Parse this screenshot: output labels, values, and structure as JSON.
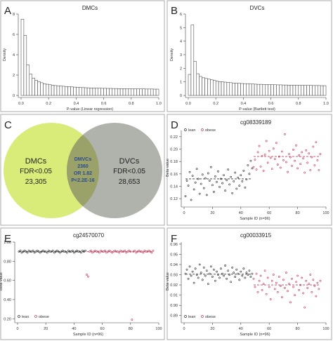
{
  "colors": {
    "lean": "#333333",
    "obese": "#c0405c",
    "dmc_circle": "#d9ec7a",
    "dvc_circle": "#b0b3ab",
    "overlap": "#9aa26a",
    "overlap_text": "#2c4d8c",
    "frame": "#aaaaaa",
    "bar_fill": "#ffffff",
    "bar_stroke": "#333333"
  },
  "panels": {
    "A": {
      "letter": "A"
    },
    "B": {
      "letter": "B"
    },
    "C": {
      "letter": "C",
      "left": {
        "title": "DMCs",
        "fdr": "FDR<0.05",
        "count": "23,305"
      },
      "right": {
        "title": "DVCs",
        "fdr": "FDR<0.05",
        "count": "28,653"
      },
      "overlap": {
        "title": "DMVCs",
        "count": "2360",
        "or": "OR 1.82",
        "p": "P<2.2E-16"
      }
    },
    "D": {
      "letter": "D"
    },
    "E": {
      "letter": "E"
    },
    "F": {
      "letter": "F"
    }
  },
  "chart_data": [
    {
      "id": "A",
      "type": "bar",
      "title": "DMCs",
      "xlabel": "P-value (Linear regression)",
      "ylabel": "Density",
      "xlim": [
        0,
        1
      ],
      "ylim": [
        0,
        8
      ],
      "xticks": [
        "0.0",
        "0.2",
        "0.4",
        "0.6",
        "0.8",
        "1.0"
      ],
      "yticks": [
        "0",
        "2",
        "4",
        "6",
        "8"
      ],
      "bin_width": 0.02,
      "values": [
        7.5,
        5.9,
        3.0,
        2.1,
        1.7,
        1.5,
        1.35,
        1.25,
        1.15,
        1.1,
        1.05,
        1.0,
        0.97,
        0.95,
        0.92,
        0.9,
        0.88,
        0.86,
        0.84,
        0.82,
        0.8,
        0.78,
        0.77,
        0.76,
        0.75,
        0.74,
        0.73,
        0.72,
        0.71,
        0.7,
        0.7,
        0.69,
        0.69,
        0.68,
        0.68,
        0.67,
        0.67,
        0.66,
        0.66,
        0.65,
        0.65,
        0.65,
        0.64,
        0.64,
        0.64,
        0.63,
        0.63,
        0.63,
        0.62,
        0.62
      ]
    },
    {
      "id": "B",
      "type": "bar",
      "title": "DVCs",
      "xlabel": "P-value (Bartlett test)",
      "ylabel": "Density",
      "xlim": [
        0,
        1
      ],
      "ylim": [
        0,
        6
      ],
      "xticks": [
        "0.0",
        "0.2",
        "0.4",
        "0.6",
        "0.8",
        "1.0"
      ],
      "yticks": [
        "0",
        "1",
        "2",
        "3",
        "4",
        "5",
        "6"
      ],
      "bin_width": 0.02,
      "values": [
        1.55,
        5.2,
        2.5,
        1.6,
        1.4,
        1.3,
        1.25,
        1.2,
        1.15,
        1.1,
        1.05,
        1.02,
        1.0,
        0.98,
        0.96,
        0.94,
        0.92,
        0.9,
        0.89,
        0.88,
        0.87,
        0.86,
        0.85,
        0.84,
        0.83,
        0.82,
        0.82,
        0.81,
        0.8,
        0.8,
        0.79,
        0.79,
        0.78,
        0.78,
        0.77,
        0.77,
        0.76,
        0.76,
        0.76,
        0.75,
        0.75,
        0.75,
        0.74,
        0.74,
        0.74,
        0.73,
        0.73,
        0.73,
        0.72,
        0.72
      ]
    },
    {
      "id": "D",
      "type": "scatter",
      "title": "cg08339189",
      "xlabel": "Sample ID (n=96)",
      "ylabel": "Beta value",
      "xlim": [
        0,
        100
      ],
      "ylim": [
        0.11,
        0.23
      ],
      "xticks": [
        "0",
        "20",
        "40",
        "60",
        "80",
        "100"
      ],
      "yticks": [
        "0.12",
        "0.14",
        "0.16",
        "0.18",
        "0.20",
        "0.22"
      ],
      "legend": [
        "lean",
        "obese"
      ],
      "legend_position": "top-left",
      "means": [
        0.152,
        0.188
      ],
      "series": [
        {
          "name": "lean",
          "x": [
            1,
            2,
            3,
            4,
            5,
            6,
            7,
            8,
            9,
            10,
            11,
            12,
            13,
            14,
            15,
            16,
            17,
            18,
            19,
            20,
            21,
            22,
            23,
            24,
            25,
            26,
            27,
            28,
            29,
            30,
            31,
            32,
            33,
            34,
            35,
            36,
            37,
            38,
            39,
            40,
            41,
            42,
            43,
            44,
            45,
            46,
            47,
            48
          ],
          "y": [
            0.124,
            0.149,
            0.141,
            0.163,
            0.118,
            0.157,
            0.135,
            0.146,
            0.168,
            0.152,
            0.128,
            0.144,
            0.159,
            0.137,
            0.153,
            0.126,
            0.161,
            0.149,
            0.171,
            0.142,
            0.131,
            0.156,
            0.147,
            0.164,
            0.139,
            0.152,
            0.145,
            0.158,
            0.133,
            0.15,
            0.167,
            0.143,
            0.155,
            0.129,
            0.148,
            0.162,
            0.136,
            0.154,
            0.141,
            0.158,
            0.148,
            0.165,
            0.138,
            0.151,
            0.174,
            0.16,
            0.181,
            0.169
          ]
        },
        {
          "name": "obese",
          "x": [
            49,
            50,
            51,
            52,
            53,
            54,
            55,
            56,
            57,
            58,
            59,
            60,
            61,
            62,
            63,
            64,
            65,
            66,
            67,
            68,
            69,
            70,
            71,
            72,
            73,
            74,
            75,
            76,
            77,
            78,
            79,
            80,
            81,
            82,
            83,
            84,
            85,
            86,
            87,
            88,
            89,
            90,
            91,
            92,
            93,
            94,
            95,
            96
          ],
          "y": [
            0.171,
            0.183,
            0.167,
            0.195,
            0.205,
            0.172,
            0.189,
            0.165,
            0.191,
            0.213,
            0.178,
            0.197,
            0.186,
            0.168,
            0.201,
            0.184,
            0.21,
            0.175,
            0.188,
            0.17,
            0.196,
            0.182,
            0.224,
            0.179,
            0.163,
            0.192,
            0.187,
            0.173,
            0.199,
            0.181,
            0.206,
            0.169,
            0.19,
            0.176,
            0.195,
            0.185,
            0.162,
            0.198,
            0.178,
            0.193,
            0.166,
            0.187,
            0.204,
            0.174,
            0.211,
            0.182,
            0.166,
            0.192
          ]
        }
      ]
    },
    {
      "id": "E",
      "type": "scatter",
      "title": "cg24570070",
      "xlabel": "Sample ID (n=96)",
      "ylabel": "Beta value",
      "xlim": [
        0,
        100
      ],
      "ylim": [
        0.18,
        1.0
      ],
      "xticks": [
        "0",
        "20",
        "40",
        "60",
        "80",
        "100"
      ],
      "yticks": [
        "0.20",
        "0.40",
        "0.60",
        "0.80",
        "1.00"
      ],
      "legend": [
        "lean",
        "obese"
      ],
      "legend_position": "bottom-left",
      "means": [
        0.9,
        0.9
      ],
      "series": [
        {
          "name": "lean",
          "x": [
            1,
            2,
            3,
            4,
            5,
            6,
            7,
            8,
            9,
            10,
            11,
            12,
            13,
            14,
            15,
            16,
            17,
            18,
            19,
            20,
            21,
            22,
            23,
            24,
            25,
            26,
            27,
            28,
            29,
            30,
            31,
            32,
            33,
            34,
            35,
            36,
            37,
            38,
            39,
            40,
            41,
            42,
            43,
            44,
            45,
            46,
            47,
            48
          ],
          "y": [
            0.9,
            0.91,
            0.89,
            0.9,
            0.91,
            0.9,
            0.89,
            0.91,
            0.9,
            0.9,
            0.91,
            0.89,
            0.9,
            0.91,
            0.9,
            0.89,
            0.9,
            0.91,
            0.9,
            0.9,
            0.89,
            0.91,
            0.9,
            0.9,
            0.91,
            0.89,
            0.9,
            0.91,
            0.9,
            0.89,
            0.9,
            0.91,
            0.9,
            0.9,
            0.89,
            0.91,
            0.9,
            0.9,
            0.91,
            0.89,
            0.9,
            0.91,
            0.9,
            0.9,
            0.89,
            0.91,
            0.9,
            0.91
          ]
        },
        {
          "name": "obese",
          "x": [
            49,
            50,
            51,
            52,
            53,
            54,
            55,
            56,
            57,
            58,
            59,
            60,
            61,
            62,
            63,
            64,
            65,
            66,
            67,
            68,
            69,
            70,
            71,
            72,
            73,
            74,
            75,
            76,
            77,
            78,
            79,
            80,
            81,
            82,
            83,
            84,
            85,
            86,
            87,
            88,
            89,
            90,
            91,
            92,
            93,
            94,
            95,
            96
          ],
          "y": [
            0.66,
            0.64,
            0.9,
            0.91,
            0.89,
            0.9,
            0.91,
            0.9,
            0.9,
            0.89,
            0.91,
            0.9,
            0.9,
            0.91,
            0.89,
            0.9,
            0.91,
            0.9,
            0.89,
            0.9,
            0.91,
            0.9,
            0.9,
            0.89,
            0.91,
            0.9,
            0.9,
            0.91,
            0.89,
            0.9,
            0.91,
            0.9,
            0.19,
            0.9,
            0.91,
            0.89,
            0.9,
            0.91,
            0.9,
            0.9,
            0.89,
            0.91,
            0.9,
            0.9,
            0.91,
            0.9,
            0.89,
            0.91
          ]
        }
      ]
    },
    {
      "id": "F",
      "type": "scatter",
      "title": "cg00033915",
      "xlabel": "Sample ID (n=96)",
      "ylabel": "Beta value",
      "xlim": [
        0,
        100
      ],
      "ylim": [
        0.885,
        0.962
      ],
      "xticks": [
        "0",
        "20",
        "40",
        "60",
        "80",
        "100"
      ],
      "yticks": [
        "0.89",
        "0.90",
        "0.91",
        "0.92",
        "0.93",
        "0.94",
        "0.95",
        "0.96"
      ],
      "legend": [
        "lean",
        "obese"
      ],
      "legend_position": "bottom-left",
      "means": [
        0.9305,
        0.92
      ],
      "series": [
        {
          "name": "lean",
          "x": [
            1,
            2,
            3,
            4,
            5,
            6,
            7,
            8,
            9,
            10,
            11,
            12,
            13,
            14,
            15,
            16,
            17,
            18,
            19,
            20,
            21,
            22,
            23,
            24,
            25,
            26,
            27,
            28,
            29,
            30,
            31,
            32,
            33,
            34,
            35,
            36,
            37,
            38,
            39,
            40,
            41,
            42,
            43,
            44,
            45,
            46,
            47,
            48
          ],
          "y": [
            0.931,
            0.935,
            0.926,
            0.938,
            0.929,
            0.933,
            0.922,
            0.936,
            0.93,
            0.927,
            0.94,
            0.932,
            0.925,
            0.937,
            0.929,
            0.934,
            0.921,
            0.931,
            0.938,
            0.928,
            0.935,
            0.924,
            0.933,
            0.93,
            0.927,
            0.936,
            0.931,
            0.929,
            0.939,
            0.926,
            0.934,
            0.93,
            0.923,
            0.937,
            0.932,
            0.928,
            0.935,
            0.931,
            0.925,
            0.933,
            0.929,
            0.936,
            0.927,
            0.932,
            0.93,
            0.934,
            0.928,
            0.931
          ]
        },
        {
          "name": "obese",
          "x": [
            49,
            50,
            51,
            52,
            53,
            54,
            55,
            56,
            57,
            58,
            59,
            60,
            61,
            62,
            63,
            64,
            65,
            66,
            67,
            68,
            69,
            70,
            71,
            72,
            73,
            74,
            75,
            76,
            77,
            78,
            79,
            80,
            81,
            82,
            83,
            84,
            85,
            86,
            87,
            88,
            89,
            90,
            91,
            92,
            93,
            94,
            95,
            96
          ],
          "y": [
            0.926,
            0.918,
            0.931,
            0.913,
            0.924,
            0.929,
            0.915,
            0.921,
            0.934,
            0.911,
            0.927,
            0.918,
            0.906,
            0.924,
            0.93,
            0.916,
            0.922,
            0.913,
            0.928,
            0.919,
            0.908,
            0.925,
            0.917,
            0.932,
            0.914,
            0.921,
            0.903,
            0.926,
            0.918,
            0.91,
            0.923,
            0.929,
            0.915,
            0.92,
            0.927,
            0.912,
            0.898,
            0.924,
            0.917,
            0.921,
            0.93,
            0.913,
            0.925,
            0.919,
            0.909,
            0.922,
            0.916,
            0.924
          ]
        }
      ]
    }
  ]
}
